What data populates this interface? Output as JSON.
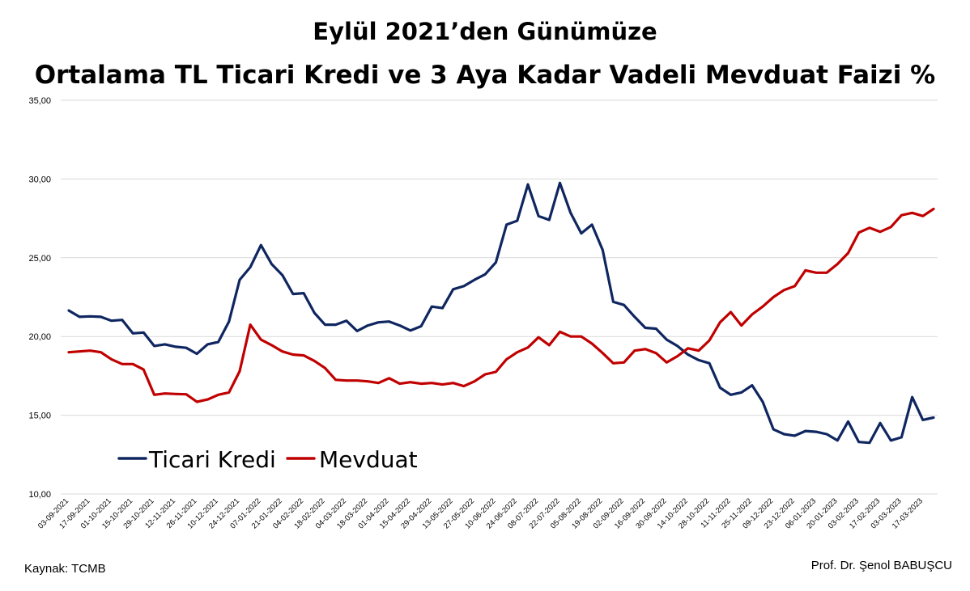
{
  "header": {
    "title_line1": "Eylül 2021’den Günümüze",
    "title_line2": "Ortalama TL Ticari Kredi ve 3 Aya Kadar Vadeli Mevduat Faizi %"
  },
  "footer": {
    "source": "Kaynak: TCMB",
    "author": "Prof. Dr. Şenol BABUŞCU"
  },
  "colors": {
    "ticari_kredi": "#0f2660",
    "mevduat": "#c00000",
    "grid": "#d9d9d9"
  },
  "chart_data": {
    "type": "line",
    "title": "Eylül 2021’den Günümüze Ortalama TL Ticari Kredi ve 3 Aya Kadar Vadeli Mevduat Faizi %",
    "xlabel": "",
    "ylabel": "",
    "ylim": [
      10,
      35
    ],
    "yticks": [
      "10,00",
      "15,00",
      "20,00",
      "25,00",
      "30,00",
      "35,00"
    ],
    "grid": true,
    "legend_position": "bottom-left inside",
    "xtick_labels": [
      "03-09-2021",
      "17-09-2021",
      "01-10-2021",
      "15-10-2021",
      "29-10-2021",
      "12-11-2021",
      "26-11-2021",
      "10-12-2021",
      "24-12-2021",
      "07-01-2022",
      "21-01-2022",
      "04-02-2022",
      "18-02-2022",
      "04-03-2022",
      "18-03-2022",
      "01-04-2022",
      "15-04-2022",
      "29-04-2022",
      "13-05-2022",
      "27-05-2022",
      "10-06-2022",
      "24-06-2022",
      "08-07-2022",
      "22-07-2022",
      "05-08-2022",
      "19-08-2022",
      "02-09-2022",
      "16-09-2022",
      "30-09-2022",
      "14-10-2022",
      "28-10-2022",
      "11-11-2022",
      "25-11-2022",
      "09-12-2022",
      "23-12-2022",
      "06-01-2023",
      "20-01-2023",
      "03-02-2023",
      "17-02-2023",
      "03-03-2023",
      "17-03-2023"
    ],
    "series": [
      {
        "name": "Ticari Kredi",
        "values": [
          21.65,
          21.25,
          21.28,
          21.25,
          21.0,
          21.05,
          20.2,
          20.25,
          19.4,
          19.5,
          19.35,
          19.28,
          18.9,
          19.5,
          19.65,
          20.95,
          23.6,
          24.4,
          25.8,
          24.6,
          23.9,
          22.7,
          22.75,
          21.5,
          20.75,
          20.75,
          21.0,
          20.35,
          20.7,
          20.9,
          20.95,
          20.7,
          20.38,
          20.65,
          21.9,
          21.8,
          23.0,
          23.2,
          23.6,
          23.95,
          24.7,
          27.1,
          27.35,
          29.65,
          27.65,
          27.4,
          29.75,
          27.85,
          26.55,
          27.1,
          25.5,
          22.2,
          22.0,
          21.25,
          20.55,
          20.5,
          19.8,
          19.4,
          18.85,
          18.5,
          18.3,
          16.75,
          16.3,
          16.45,
          16.9,
          15.85,
          14.1,
          13.8,
          13.7,
          14.0,
          13.95,
          13.8,
          13.4,
          14.6,
          13.3,
          13.25,
          14.5,
          13.4,
          13.6,
          16.15,
          14.7,
          14.85
        ]
      },
      {
        "name": "Mevduat",
        "values": [
          19.0,
          19.05,
          19.1,
          19.0,
          18.55,
          18.25,
          18.25,
          17.9,
          16.3,
          16.38,
          16.35,
          16.33,
          15.85,
          16.0,
          16.3,
          16.45,
          17.8,
          20.75,
          19.8,
          19.45,
          19.05,
          18.85,
          18.8,
          18.45,
          18.0,
          17.25,
          17.2,
          17.2,
          17.15,
          17.05,
          17.35,
          17.0,
          17.1,
          17.0,
          17.05,
          16.95,
          17.05,
          16.85,
          17.15,
          17.6,
          17.75,
          18.55,
          19.0,
          19.3,
          19.95,
          19.45,
          20.3,
          20.0,
          20.0,
          19.55,
          18.95,
          18.3,
          18.35,
          19.1,
          19.2,
          18.95,
          18.35,
          18.75,
          19.25,
          19.1,
          19.75,
          20.9,
          21.55,
          20.7,
          21.4,
          21.9,
          22.5,
          22.95,
          23.2,
          24.2,
          24.05,
          24.05,
          24.6,
          25.3,
          26.6,
          26.9,
          26.65,
          26.95,
          27.7,
          27.85,
          27.65,
          28.1
        ]
      }
    ]
  }
}
